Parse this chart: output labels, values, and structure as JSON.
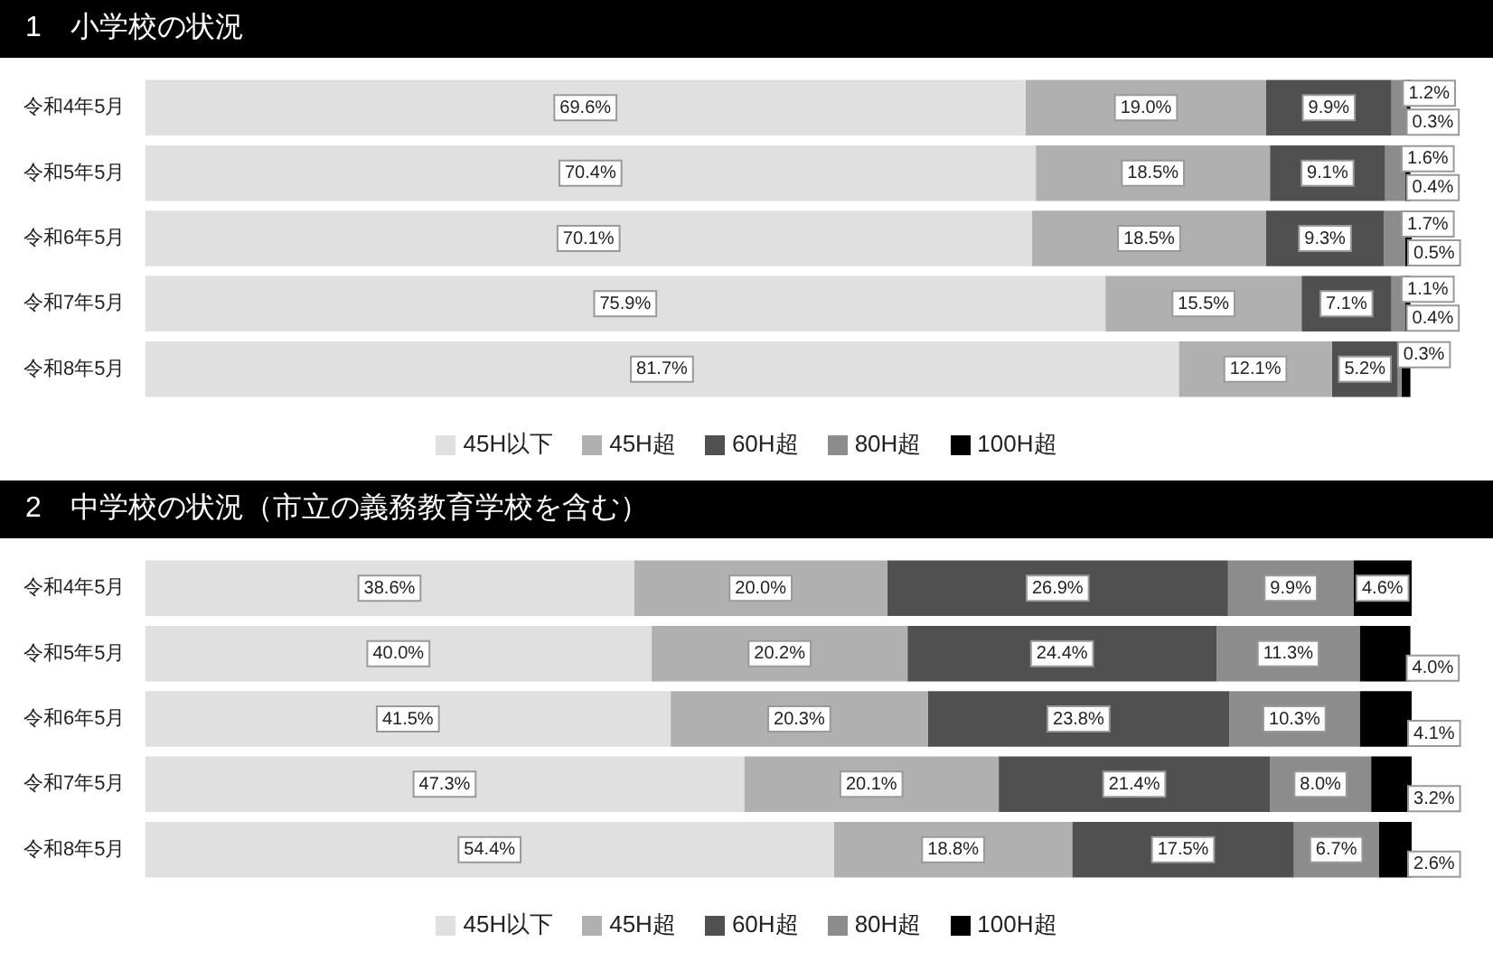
{
  "chart_data": [
    {
      "type": "bar",
      "title": "1　小学校の状況",
      "orientation": "horizontal",
      "stacked": true,
      "tick_labels": "y",
      "legend": "bottom",
      "categories": [
        "令和4年5月",
        "令和5年5月",
        "令和6年5月",
        "令和7年5月",
        "令和8年5月"
      ],
      "series": [
        {
          "name": "45H以下",
          "color": "#e0e0e0",
          "values": [
            69.6,
            70.4,
            70.1,
            75.9,
            81.7
          ],
          "value_labels": [
            "69.6%",
            "70.4%",
            "70.1%",
            "75.9%",
            "81.7%"
          ]
        },
        {
          "name": "45H超",
          "color": "#b0b0b0",
          "values": [
            19.0,
            18.5,
            18.5,
            15.5,
            12.1
          ],
          "value_labels": [
            "19.0%",
            "18.5%",
            "18.5%",
            "15.5%",
            "12.1%"
          ]
        },
        {
          "name": "60H超",
          "color": "#505050",
          "values": [
            9.9,
            9.1,
            9.3,
            7.1,
            5.2
          ],
          "value_labels": [
            "9.9%",
            "9.1%",
            "9.3%",
            "7.1%",
            "5.2%"
          ]
        },
        {
          "name": "80H超",
          "color": "#8c8c8c",
          "values": [
            1.2,
            1.6,
            1.7,
            1.1,
            0.3
          ],
          "value_labels": [
            "1.2%",
            "1.6%",
            "1.7%",
            "1.1%",
            "0.3%"
          ]
        },
        {
          "name": "100H超",
          "color": "#000000",
          "values": [
            0.3,
            0.4,
            0.5,
            0.4,
            0.7
          ],
          "value_labels": [
            "0.3%",
            "0.4%",
            "0.5%",
            "0.4%",
            null
          ]
        }
      ]
    },
    {
      "type": "bar",
      "title": "2　中学校の状況（市立の義務教育学校を含む）",
      "orientation": "horizontal",
      "stacked": true,
      "tick_labels": "y",
      "legend": "bottom",
      "categories": [
        "令和4年5月",
        "令和5年5月",
        "令和6年5月",
        "令和7年5月",
        "令和8年5月"
      ],
      "series": [
        {
          "name": "45H以下",
          "color": "#e0e0e0",
          "values": [
            38.6,
            40.0,
            41.5,
            47.3,
            54.4
          ],
          "value_labels": [
            "38.6%",
            "40.0%",
            "41.5%",
            "47.3%",
            "54.4%"
          ]
        },
        {
          "name": "45H超",
          "color": "#b0b0b0",
          "values": [
            20.0,
            20.2,
            20.3,
            20.1,
            18.8
          ],
          "value_labels": [
            "20.0%",
            "20.2%",
            "20.3%",
            "20.1%",
            "18.8%"
          ]
        },
        {
          "name": "60H超",
          "color": "#505050",
          "values": [
            26.9,
            24.4,
            23.8,
            21.4,
            17.5
          ],
          "value_labels": [
            "26.9%",
            "24.4%",
            "23.8%",
            "21.4%",
            "17.5%"
          ]
        },
        {
          "name": "80H超",
          "color": "#8c8c8c",
          "values": [
            9.9,
            11.3,
            10.3,
            8.0,
            6.7
          ],
          "value_labels": [
            "9.9%",
            "11.3%",
            "10.3%",
            "8.0%",
            "6.7%"
          ]
        },
        {
          "name": "100H超",
          "color": "#000000",
          "values": [
            4.6,
            4.0,
            4.1,
            3.2,
            2.6
          ],
          "value_labels": [
            "4.6%",
            "4.0%",
            "4.1%",
            "3.2%",
            "2.6%"
          ]
        }
      ]
    }
  ]
}
